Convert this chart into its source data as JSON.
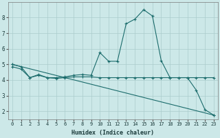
{
  "xlabel": "Humidex (Indice chaleur)",
  "background_color": "#cce8e8",
  "grid_color": "#aacccc",
  "line_color": "#1a6b6b",
  "xlim": [
    -0.5,
    23.5
  ],
  "ylim": [
    1.5,
    9.0
  ],
  "yticks": [
    2,
    3,
    4,
    5,
    6,
    7,
    8
  ],
  "xticks": [
    0,
    1,
    2,
    3,
    4,
    5,
    6,
    7,
    8,
    9,
    10,
    11,
    12,
    13,
    14,
    15,
    16,
    17,
    18,
    19,
    20,
    21,
    22,
    23
  ],
  "line1_x": [
    0,
    1,
    2,
    3,
    4,
    5,
    6,
    7,
    8,
    9,
    10,
    11,
    12,
    13,
    14,
    15,
    16,
    17,
    18,
    19,
    20,
    21,
    22,
    23
  ],
  "line1_y": [
    5.0,
    4.85,
    4.15,
    4.35,
    4.15,
    4.15,
    4.2,
    4.3,
    4.35,
    4.3,
    5.75,
    5.2,
    5.2,
    7.6,
    7.9,
    8.5,
    8.1,
    5.25,
    4.15,
    4.15,
    4.15,
    3.35,
    2.1,
    1.75
  ],
  "line2_x": [
    0,
    1,
    2,
    3,
    4,
    5,
    6,
    7,
    8,
    9,
    10,
    11,
    12,
    13,
    14,
    15,
    16,
    17,
    18,
    19,
    20,
    21,
    22,
    23
  ],
  "line2_y": [
    4.85,
    4.7,
    4.15,
    4.3,
    4.15,
    4.1,
    4.15,
    4.2,
    4.2,
    4.2,
    4.15,
    4.15,
    4.15,
    4.15,
    4.15,
    4.15,
    4.15,
    4.15,
    4.15,
    4.15,
    4.15,
    4.15,
    4.15,
    4.15
  ],
  "line3_x": [
    0,
    23
  ],
  "line3_y": [
    5.0,
    1.75
  ]
}
